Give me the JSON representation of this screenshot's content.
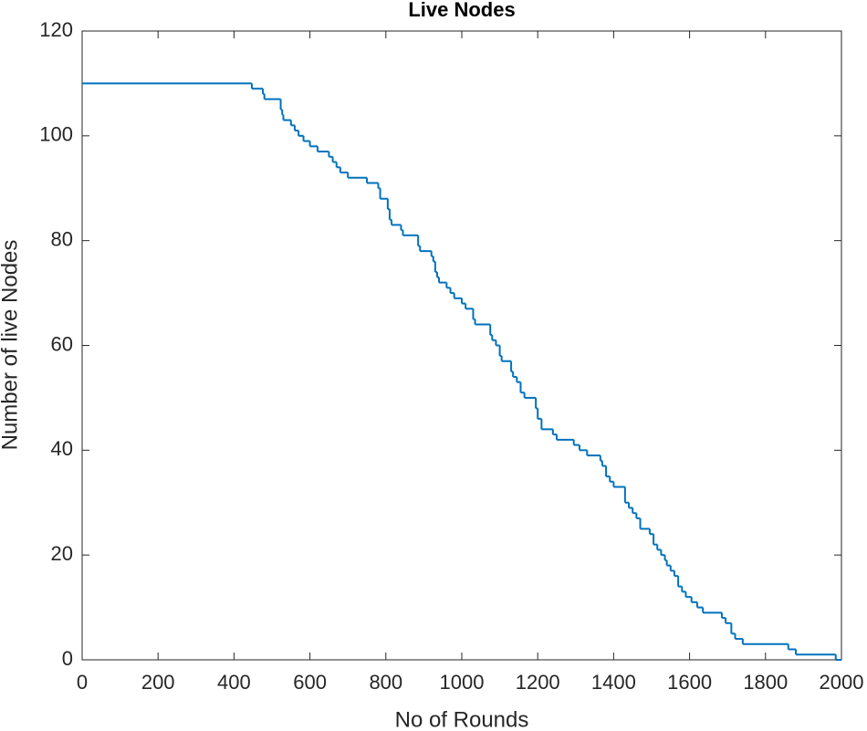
{
  "chart_data": {
    "type": "line",
    "step": "post",
    "title": "Live Nodes",
    "x_label": "No of Rounds",
    "y_label": "Number of live Nodes",
    "color": "#0072bd",
    "x": [
      0,
      447,
      476,
      480,
      523,
      527,
      530,
      550,
      560,
      570,
      583,
      600,
      620,
      650,
      660,
      670,
      680,
      700,
      750,
      780,
      785,
      805,
      810,
      815,
      840,
      845,
      885,
      890,
      920,
      925,
      930,
      935,
      940,
      960,
      970,
      980,
      1000,
      1010,
      1030,
      1035,
      1075,
      1080,
      1090,
      1100,
      1105,
      1130,
      1135,
      1145,
      1155,
      1165,
      1195,
      1200,
      1210,
      1240,
      1250,
      1295,
      1310,
      1330,
      1365,
      1370,
      1380,
      1390,
      1400,
      1430,
      1440,
      1450,
      1460,
      1470,
      1495,
      1505,
      1515,
      1525,
      1535,
      1540,
      1550,
      1560,
      1570,
      1580,
      1590,
      1605,
      1620,
      1635,
      1685,
      1695,
      1710,
      1720,
      1740,
      1860,
      1880,
      1985,
      2000
    ],
    "values": [
      110,
      109,
      108,
      107,
      105,
      104,
      103,
      102,
      101,
      100,
      99,
      98,
      97,
      96,
      95,
      94,
      93,
      92,
      91,
      90,
      88,
      86,
      84,
      83,
      82,
      81,
      79,
      78,
      77,
      76,
      74,
      73,
      72,
      71,
      70,
      69,
      68,
      67,
      65,
      64,
      62,
      61,
      60,
      58,
      57,
      55,
      54,
      53,
      51,
      50,
      48,
      46,
      44,
      43,
      42,
      41,
      40,
      39,
      38,
      37,
      35,
      34,
      33,
      30,
      29,
      28,
      27,
      25,
      24,
      22,
      21,
      20,
      19,
      18,
      17,
      16,
      14,
      13,
      12,
      11,
      10,
      9,
      8,
      7,
      5,
      4,
      3,
      2,
      1,
      0,
      0
    ],
    "xlim": [
      0,
      2000
    ],
    "xticks": [
      0,
      200,
      400,
      600,
      800,
      1000,
      1200,
      1400,
      1600,
      1800,
      2000
    ],
    "ylim": [
      0,
      120
    ],
    "yticks": [
      0,
      20,
      40,
      60,
      80,
      100,
      120
    ],
    "grid": false
  }
}
